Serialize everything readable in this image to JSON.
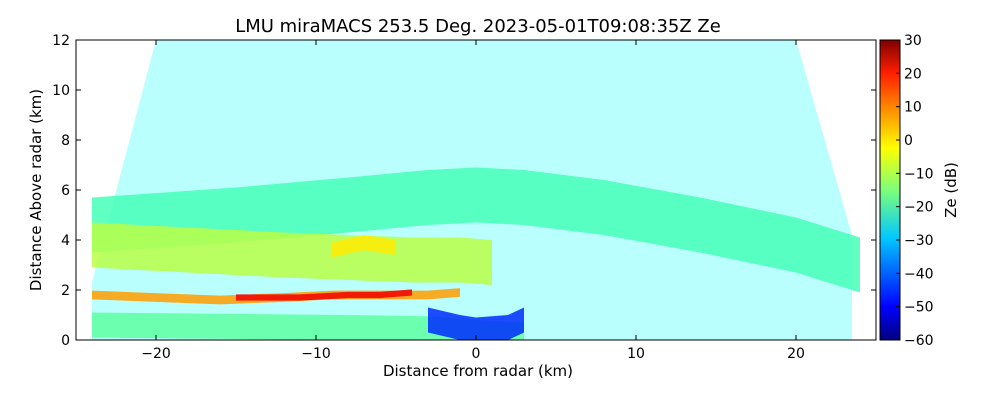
{
  "chart_data": {
    "type": "heatmap",
    "title": "LMU miraMACS 253.5 Deg. 2023-05-01T09:08:35Z  Ze",
    "xlabel": "Distance from radar (km)",
    "ylabel": "Distance Above radar  (km)",
    "xlim": [
      -25,
      25
    ],
    "ylim": [
      0,
      12
    ],
    "xticks": [
      -20,
      -10,
      0,
      10,
      20
    ],
    "yticks": [
      0,
      2,
      4,
      6,
      8,
      10,
      12
    ],
    "grid": false,
    "colorbar": {
      "label": "Ze (dB)",
      "range": [
        -60,
        30
      ],
      "ticks": [
        30,
        20,
        10,
        0,
        -10,
        -20,
        -30,
        -40,
        -50,
        -60
      ],
      "colormap": "jet"
    },
    "scan_fan": {
      "x": [
        -24,
        -20,
        -16,
        -12,
        -8,
        -4,
        0,
        4,
        8,
        12,
        16,
        20,
        23.5
      ],
      "top_km": [
        2.3,
        12,
        12,
        12,
        12,
        12,
        12,
        12,
        12,
        12,
        12,
        12,
        4.2
      ]
    },
    "layers": [
      {
        "x": [
          -24,
          -15,
          -8,
          -3,
          0,
          3,
          8,
          14,
          20,
          24
        ],
        "y": [
          4.6,
          5.0,
          5.4,
          5.7,
          5.8,
          5.7,
          5.3,
          4.6,
          3.8,
          3.0
        ],
        "thickness_km": 2.2,
        "value_db": -20
      },
      {
        "x": [
          -24,
          -18,
          -12,
          -8,
          -4,
          -1,
          1
        ],
        "y": [
          3.8,
          3.6,
          3.4,
          3.3,
          3.2,
          3.2,
          3.1
        ],
        "thickness_km": 1.8,
        "value_db": -10
      },
      {
        "x": [
          -24,
          -20,
          -16,
          -12,
          -9,
          -6,
          -3,
          -1
        ],
        "y": [
          1.8,
          1.7,
          1.6,
          1.7,
          1.8,
          1.8,
          1.8,
          1.9
        ],
        "thickness_km": 0.35,
        "value_db": 5
      },
      {
        "x": [
          -15,
          -11,
          -8,
          -6,
          -4
        ],
        "y": [
          1.7,
          1.7,
          1.8,
          1.8,
          1.9
        ],
        "thickness_km": 0.25,
        "value_db": 20
      },
      {
        "x": [
          -24,
          -16,
          -8,
          -3,
          0,
          3
        ],
        "y": [
          0.6,
          0.55,
          0.5,
          0.45,
          0.3,
          0.2
        ],
        "thickness_km": 1.0,
        "value_db": -18
      },
      {
        "x": [
          -3,
          -1,
          0,
          2,
          3
        ],
        "y": [
          0.8,
          0.5,
          0.4,
          0.5,
          0.8
        ],
        "thickness_km": 1.0,
        "value_db": -45
      },
      {
        "x": [
          -9,
          -7,
          -5
        ],
        "y": [
          3.6,
          3.9,
          3.7
        ],
        "thickness_km": 0.6,
        "value_db": -2
      }
    ]
  }
}
